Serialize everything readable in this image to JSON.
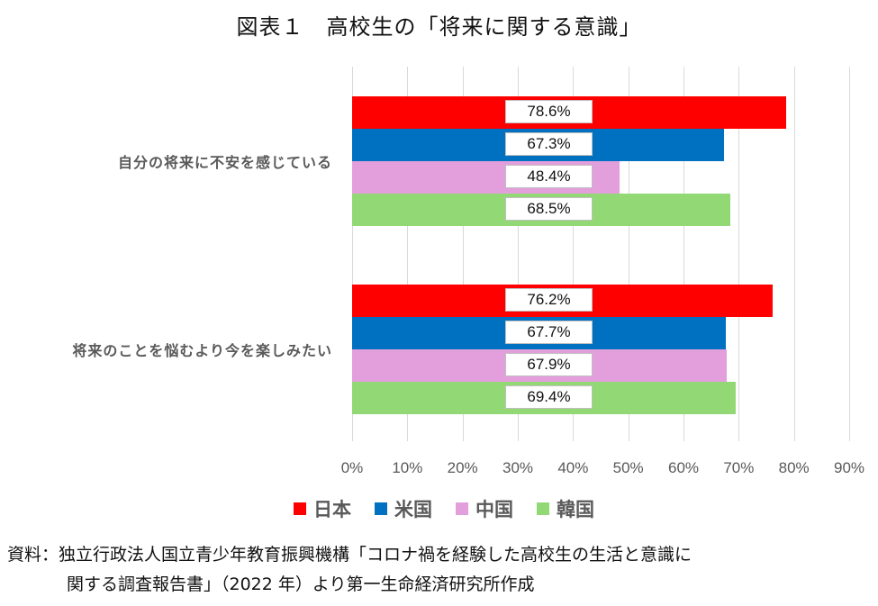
{
  "title": "図表１　高校生の「将来に関する意識」",
  "chart_data": {
    "type": "bar",
    "orientation": "horizontal",
    "title": "図表１　高校生の「将来に関する意識」",
    "categories": [
      "自分の将来に不安を感じている",
      "将来のことを悩むより今を楽しみたい"
    ],
    "series": [
      {
        "name": "日本",
        "color": "#ff0000",
        "values": [
          78.6,
          76.2
        ],
        "labels": [
          "78.6%",
          "76.2%"
        ]
      },
      {
        "name": "米国",
        "color": "#0070c0",
        "values": [
          67.3,
          67.7
        ],
        "labels": [
          "67.3%",
          "67.7%"
        ]
      },
      {
        "name": "中国",
        "color": "#e29fdc",
        "values": [
          48.4,
          67.9
        ],
        "labels": [
          "48.4%",
          "67.9%"
        ]
      },
      {
        "name": "韓国",
        "color": "#92d975",
        "values": [
          68.5,
          69.4
        ],
        "labels": [
          "68.5%",
          "69.4%"
        ]
      }
    ],
    "xlabel": "",
    "ylabel": "",
    "xlim": [
      0,
      90
    ],
    "xticks": [
      "0%",
      "10%",
      "20%",
      "30%",
      "40%",
      "50%",
      "60%",
      "70%",
      "80%",
      "90%"
    ],
    "grid": true,
    "legend_position": "bottom"
  },
  "source": {
    "line1": "資料：独立行政法人国立青少年教育振興機構「コロナ禍を経験した高校生の生活と意識に",
    "line2": "関する調査報告書」（2022 年）より第一生命経済研究所作成"
  }
}
